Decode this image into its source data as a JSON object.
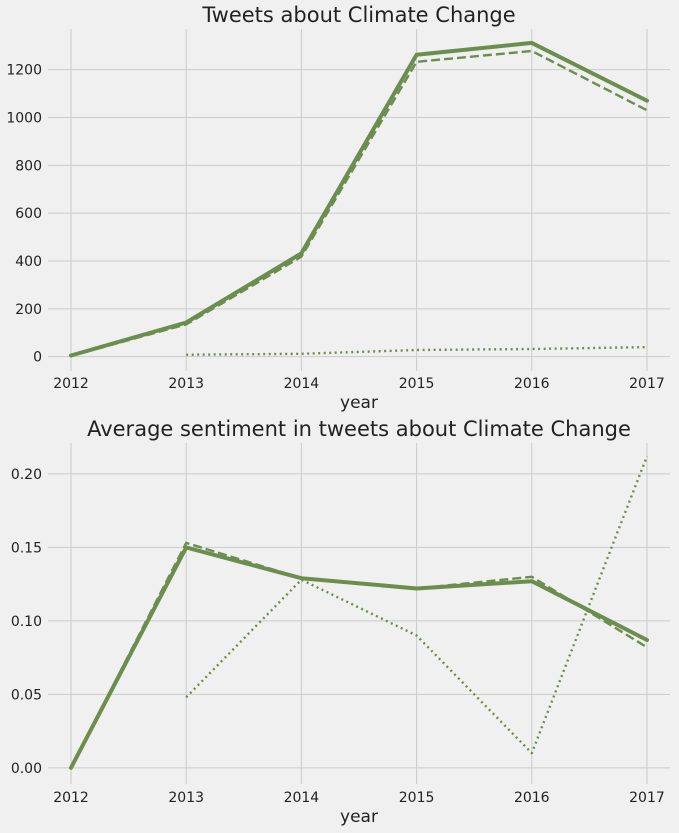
{
  "chart_data": [
    {
      "type": "line",
      "title": "Tweets about Climate Change",
      "xlabel": "year",
      "ylabel": "",
      "x": [
        2012,
        2013,
        2014,
        2015,
        2016,
        2017
      ],
      "xlim": [
        2011.8,
        2017.2
      ],
      "ylim": [
        -60,
        1370
      ],
      "yticks": [
        0,
        200,
        400,
        600,
        800,
        1000,
        1200
      ],
      "ytick_labels": [
        "0",
        "200",
        "400",
        "600",
        "800",
        "1000",
        "1200"
      ],
      "grid": true,
      "legend": "none",
      "series": [
        {
          "style": "solid",
          "color": "#6b8e4e",
          "values": [
            5,
            143,
            432,
            1262,
            1312,
            1070
          ]
        },
        {
          "style": "dashed",
          "color": "#6b8e4e",
          "values": [
            3,
            135,
            418,
            1233,
            1278,
            1030
          ]
        },
        {
          "style": "dotted",
          "color": "#6b8e4e",
          "values": [
            null,
            8,
            12,
            28,
            32,
            40
          ]
        }
      ]
    },
    {
      "type": "line",
      "title": "Average sentiment in tweets about Climate Change",
      "xlabel": "year",
      "ylabel": "",
      "x": [
        2012,
        2013,
        2014,
        2015,
        2016,
        2017
      ],
      "xlim": [
        2011.8,
        2017.2
      ],
      "ylim": [
        -0.011,
        0.221
      ],
      "yticks": [
        0.0,
        0.05,
        0.1,
        0.15,
        0.2
      ],
      "ytick_labels": [
        "0.00",
        "0.05",
        "0.10",
        "0.15",
        "0.20"
      ],
      "grid": true,
      "legend": "none",
      "series": [
        {
          "style": "solid",
          "color": "#6b8e4e",
          "values": [
            0.0,
            0.15,
            0.129,
            0.122,
            0.127,
            0.087
          ]
        },
        {
          "style": "dashed",
          "color": "#6b8e4e",
          "values": [
            0.0,
            0.153,
            0.129,
            0.122,
            0.13,
            0.082
          ]
        },
        {
          "style": "dotted",
          "color": "#6b8e4e",
          "values": [
            null,
            0.048,
            0.128,
            0.09,
            0.01,
            0.212
          ]
        }
      ]
    }
  ]
}
